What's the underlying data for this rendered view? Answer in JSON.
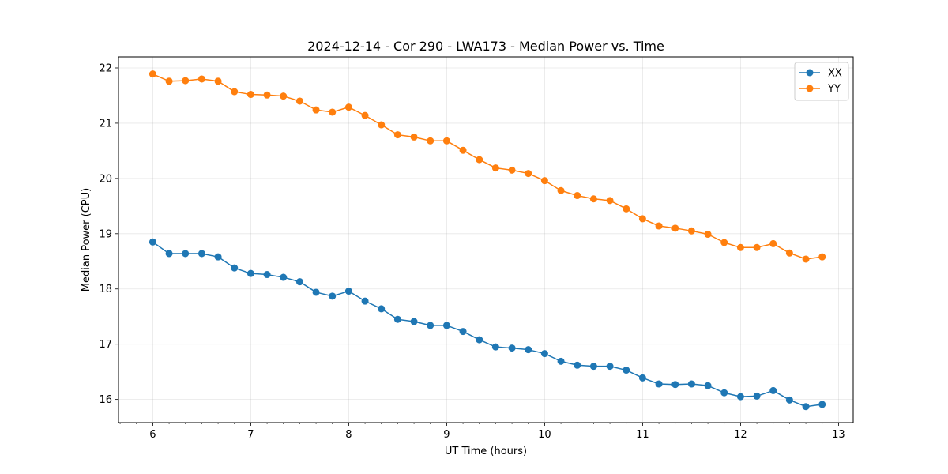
{
  "chart_data": {
    "type": "line",
    "title": "2024-12-14 - Cor 290 - LWA173 - Median Power vs. Time",
    "xlabel": "UT Time (hours)",
    "ylabel": "Median Power (CPU)",
    "xlim": [
      5.65,
      13.15
    ],
    "ylim": [
      15.58,
      22.2
    ],
    "xticks": [
      6,
      7,
      8,
      9,
      10,
      11,
      12,
      13
    ],
    "xtick_labels": [
      "6",
      "7",
      "8",
      "9",
      "10",
      "11",
      "12",
      "13"
    ],
    "yticks": [
      16,
      17,
      18,
      19,
      20,
      21,
      22
    ],
    "ytick_labels": [
      "16",
      "17",
      "18",
      "19",
      "20",
      "21",
      "22"
    ],
    "grid": true,
    "legend_position": "top-right",
    "x": [
      6.0,
      6.1667,
      6.3333,
      6.5,
      6.6667,
      6.8333,
      7.0,
      7.1667,
      7.3333,
      7.5,
      7.6667,
      7.8333,
      8.0,
      8.1667,
      8.3333,
      8.5,
      8.6667,
      8.8333,
      9.0,
      9.1667,
      9.3333,
      9.5,
      9.6667,
      9.8333,
      10.0,
      10.1667,
      10.3333,
      10.5,
      10.6667,
      10.8333,
      11.0,
      11.1667,
      11.3333,
      11.5,
      11.6667,
      11.8333,
      12.0,
      12.1667,
      12.3333,
      12.5,
      12.6667,
      12.8333
    ],
    "series": [
      {
        "name": "XX",
        "color": "#1f77b4",
        "values": [
          18.85,
          18.64,
          18.64,
          18.64,
          18.58,
          18.38,
          18.28,
          18.26,
          18.21,
          18.13,
          17.94,
          17.87,
          17.96,
          17.78,
          17.64,
          17.45,
          17.41,
          17.34,
          17.34,
          17.23,
          17.08,
          16.95,
          16.93,
          16.9,
          16.83,
          16.69,
          16.62,
          16.6,
          16.6,
          16.53,
          16.39,
          16.28,
          16.27,
          16.28,
          16.25,
          16.12,
          16.05,
          16.06,
          16.16,
          15.99,
          15.87,
          15.91
        ]
      },
      {
        "name": "YY",
        "color": "#ff7f0e",
        "values": [
          21.89,
          21.76,
          21.77,
          21.8,
          21.76,
          21.57,
          21.52,
          21.51,
          21.49,
          21.4,
          21.24,
          21.2,
          21.29,
          21.14,
          20.97,
          20.79,
          20.75,
          20.68,
          20.68,
          20.51,
          20.34,
          20.19,
          20.15,
          20.09,
          19.96,
          19.78,
          19.69,
          19.63,
          19.6,
          19.45,
          19.27,
          19.14,
          19.1,
          19.05,
          18.99,
          18.84,
          18.75,
          18.75,
          18.82,
          18.65,
          18.54,
          18.58
        ]
      }
    ]
  }
}
